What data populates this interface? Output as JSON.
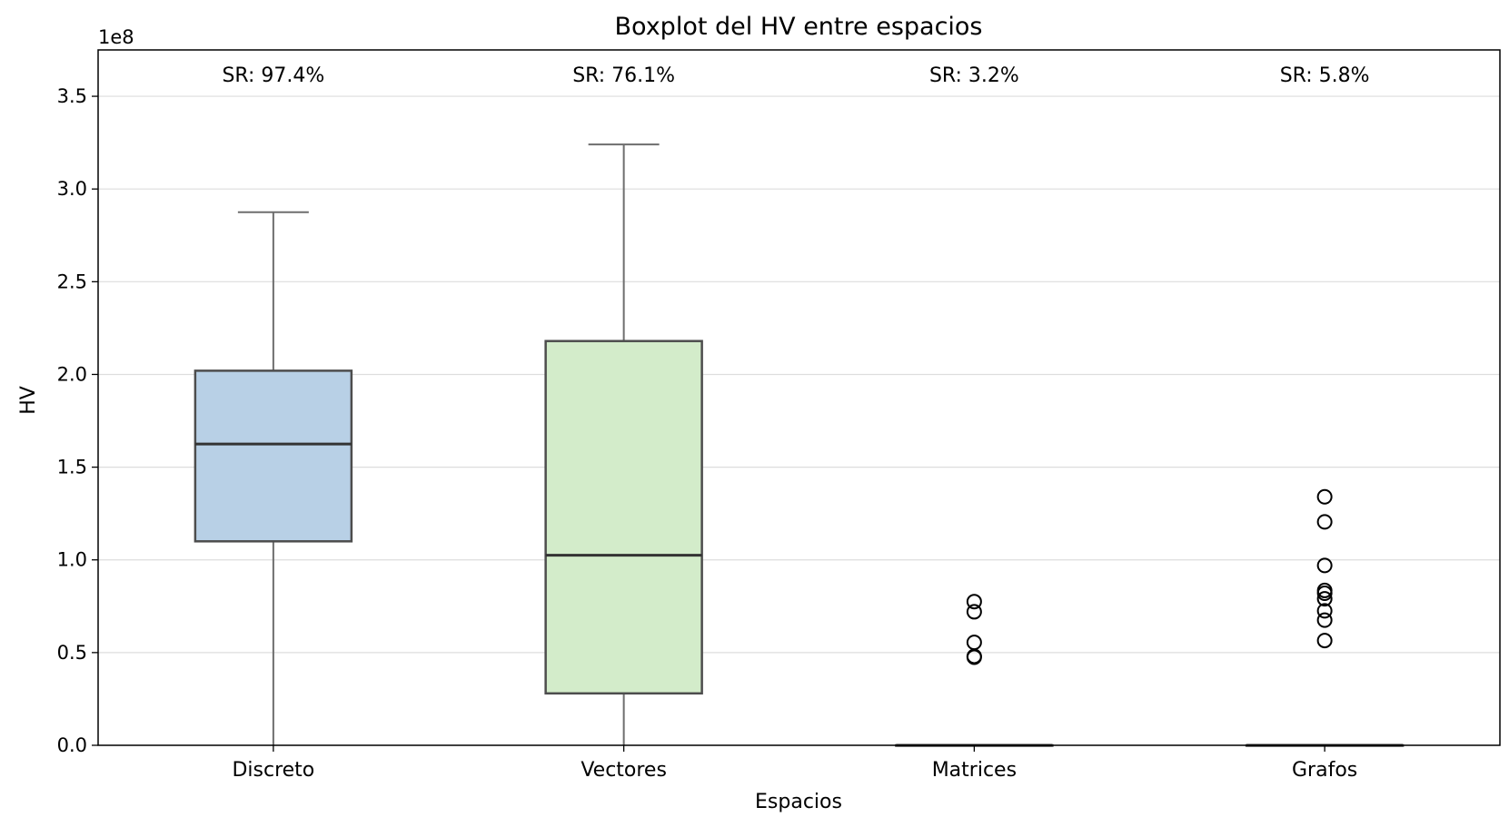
{
  "chart_data": {
    "type": "box",
    "title": "Boxplot del HV entre espacios",
    "xlabel": "Espacios",
    "ylabel": "HV",
    "y_offset_label": "1e8",
    "ylim": [
      0,
      3.75
    ],
    "y_ticks": [
      0.0,
      0.5,
      1.0,
      1.5,
      2.0,
      2.5,
      3.0,
      3.5
    ],
    "y_tick_labels": [
      "0.0",
      "0.5",
      "1.0",
      "1.5",
      "2.0",
      "2.5",
      "3.0",
      "3.5"
    ],
    "grid": "horizontal",
    "categories": [
      "Discreto",
      "Vectores",
      "Matrices",
      "Grafos"
    ],
    "annotations": [
      "SR: 97.4%",
      "SR: 76.1%",
      "SR: 3.2%",
      "SR: 5.8%"
    ],
    "boxes": [
      {
        "category": "Discreto",
        "whisker_low": 0.0,
        "q1": 1.1,
        "median": 1.625,
        "q3": 2.02,
        "whisker_high": 2.875,
        "outliers": [],
        "color": "#b8d0e6"
      },
      {
        "category": "Vectores",
        "whisker_low": 0.0,
        "q1": 0.28,
        "median": 1.025,
        "q3": 2.18,
        "whisker_high": 3.24,
        "outliers": [],
        "color": "#d3ecca"
      },
      {
        "category": "Matrices",
        "whisker_low": 0.0,
        "q1": 0.0,
        "median": 0.0,
        "q3": 0.0,
        "whisker_high": 0.0,
        "outliers": [
          0.775,
          0.72,
          0.555,
          0.48,
          0.475
        ],
        "color": "#fbcfd1"
      },
      {
        "category": "Grafos",
        "whisker_low": 0.0,
        "q1": 0.0,
        "median": 0.0,
        "q3": 0.0,
        "whisker_high": 0.0,
        "outliers": [
          1.34,
          1.205,
          0.97,
          0.835,
          0.82,
          0.79,
          0.725,
          0.675,
          0.565
        ],
        "color": "#fde2c4"
      }
    ]
  }
}
